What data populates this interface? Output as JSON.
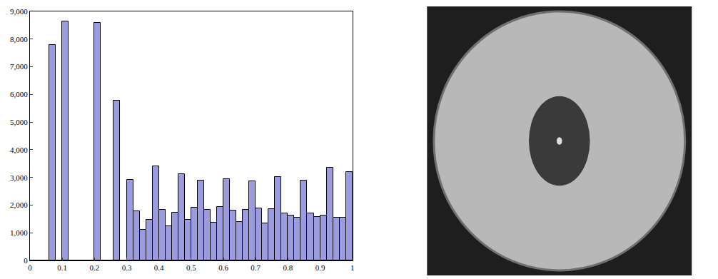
{
  "chart_data": {
    "type": "histogram",
    "bins": [
      0,
      0.02,
      0.04,
      0.06,
      0.08,
      0.1,
      0.12,
      0.14,
      0.16,
      0.18,
      0.2,
      0.22,
      0.24,
      0.26,
      0.28,
      0.3,
      0.32,
      0.34,
      0.36,
      0.38,
      0.4,
      0.42,
      0.44,
      0.46,
      0.48,
      0.5,
      0.52,
      0.54,
      0.56,
      0.58,
      0.6,
      0.62,
      0.64,
      0.66,
      0.68,
      0.7,
      0.72,
      0.74,
      0.76,
      0.78,
      0.8,
      0.82,
      0.84,
      0.86,
      0.88,
      0.9,
      0.92,
      0.94,
      0.96,
      0.98,
      1
    ],
    "values": [
      0,
      0,
      0,
      7800,
      0,
      8650,
      0,
      0,
      0,
      0,
      8600,
      0,
      0,
      5780,
      0,
      2920,
      1790,
      1120,
      1480,
      3400,
      1840,
      1240,
      1740,
      3130,
      1470,
      1910,
      2890,
      1830,
      1370,
      1930,
      2930,
      1810,
      1390,
      1840,
      2870,
      1890,
      1340,
      1850,
      3010,
      1710,
      1620,
      1560,
      2880,
      1700,
      1570,
      1630,
      3340,
      1540,
      1540,
      3210
    ],
    "color": "#9b9be0",
    "xlim": [
      0,
      1
    ],
    "xticks": [
      0,
      0.1,
      0.2,
      0.3,
      0.4,
      0.5,
      0.6,
      0.7,
      0.8,
      0.9,
      1
    ],
    "ylim": [
      0,
      9000
    ],
    "yticks": [
      0,
      {
        "value": 1000,
        "label": "1,000"
      },
      {
        "value": 2000,
        "label": "2,000"
      },
      {
        "value": 3000,
        "label": "3,000"
      },
      {
        "value": 4000,
        "label": "4,000"
      },
      {
        "value": 5000,
        "label": "5,000"
      },
      {
        "value": 6000,
        "label": "6,000"
      },
      {
        "value": 7000,
        "label": "7,000"
      },
      {
        "value": 8000,
        "label": "8,000"
      },
      {
        "value": 9000,
        "label": "9,000"
      }
    ],
    "grid": false
  }
}
